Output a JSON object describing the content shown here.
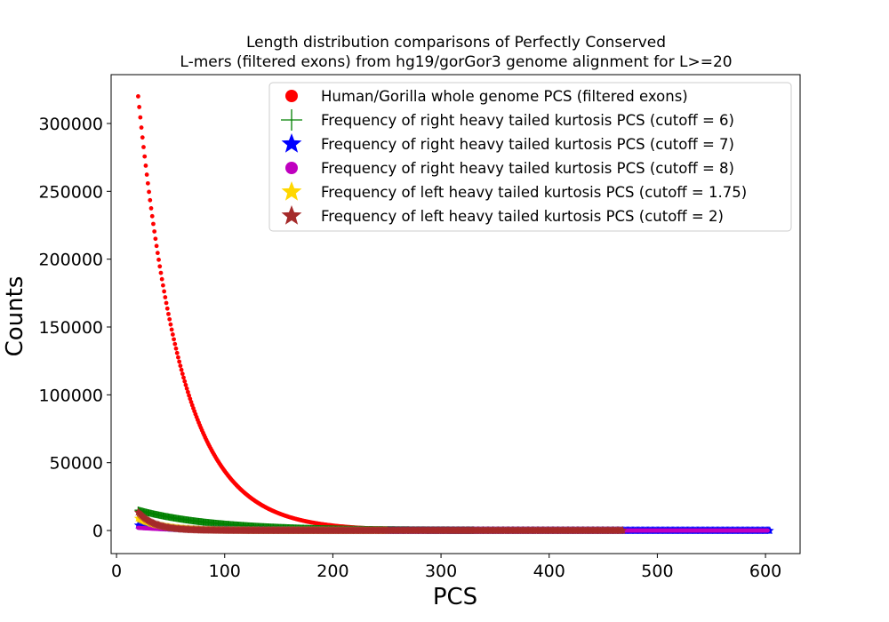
{
  "chart_data": {
    "type": "scatter",
    "title": "Length distribution comparisons of Perfectly Conserved",
    "subtitle": "L-mers (filtered exons) from hg19/gorGor3 genome alignment for L>=20",
    "xlabel": "PCS",
    "ylabel": "Counts",
    "xlim": [
      -5,
      632
    ],
    "ylim": [
      -17000,
      336000
    ],
    "xticks": [
      "0",
      "100",
      "200",
      "300",
      "400",
      "500",
      "600"
    ],
    "yticks": [
      "0",
      "50000",
      "100000",
      "150000",
      "200000",
      "250000",
      "300000"
    ],
    "grid": false,
    "legend_position": "top-right",
    "series": [
      {
        "name": "Human/Gorilla whole genome PCS (filtered exons)",
        "marker": "dot",
        "color": "#ff0000",
        "x_range": [
          20,
          604
        ],
        "model": {
          "kind": "exp",
          "a": 320000,
          "k": 0.02485,
          "x0": 20
        },
        "points": [
          [
            20,
            320000
          ],
          [
            30,
            250000
          ],
          [
            40,
            195000
          ],
          [
            50,
            152000
          ],
          [
            60,
            118000
          ],
          [
            80,
            72000
          ],
          [
            100,
            44000
          ],
          [
            120,
            27000
          ],
          [
            150,
            13500
          ],
          [
            200,
            4000
          ],
          [
            250,
            1300
          ],
          [
            300,
            400
          ],
          [
            400,
            50
          ],
          [
            500,
            0
          ],
          [
            604,
            0
          ]
        ]
      },
      {
        "name": "Frequency of right heavy tailed kurtosis PCS (cutoff = 6)",
        "marker": "plus",
        "color": "#008000",
        "x_range": [
          20,
          330
        ],
        "model": {
          "kind": "exp",
          "a": 15000,
          "k": 0.0145,
          "x0": 20
        },
        "points": [
          [
            20,
            15000
          ],
          [
            50,
            9700
          ],
          [
            100,
            4700
          ],
          [
            150,
            2300
          ],
          [
            200,
            1100
          ],
          [
            250,
            500
          ],
          [
            330,
            150
          ]
        ]
      },
      {
        "name": "Frequency of right heavy tailed kurtosis PCS (cutoff = 7)",
        "marker": "star",
        "color": "#0000ff",
        "x_range": [
          20,
          604
        ],
        "model": {
          "kind": "exp",
          "a": 4000,
          "k": 0.03,
          "x0": 20
        },
        "points": [
          [
            20,
            4000
          ],
          [
            50,
            1600
          ],
          [
            100,
            360
          ],
          [
            200,
            20
          ],
          [
            604,
            0
          ]
        ]
      },
      {
        "name": "Frequency of right heavy tailed kurtosis PCS (cutoff = 8)",
        "marker": "dot",
        "color": "#bf00bf",
        "x_range": [
          20,
          602
        ],
        "model": {
          "kind": "exp",
          "a": 2000,
          "k": 0.03,
          "x0": 20
        },
        "points": [
          [
            20,
            2000
          ],
          [
            50,
            800
          ],
          [
            100,
            180
          ],
          [
            200,
            10
          ],
          [
            602,
            0
          ]
        ]
      },
      {
        "name": "Frequency of left heavy tailed kurtosis PCS (cutoff = 1.75)",
        "marker": "star",
        "color": "#ffd700",
        "x_range": [
          20,
          250
        ],
        "model": {
          "kind": "exp",
          "a": 9000,
          "k": 0.045,
          "x0": 20
        },
        "points": [
          [
            20,
            9000
          ],
          [
            40,
            3700
          ],
          [
            60,
            1500
          ],
          [
            100,
            250
          ],
          [
            250,
            0
          ]
        ]
      },
      {
        "name": "Frequency of left heavy tailed kurtosis PCS (cutoff = 2)",
        "marker": "star",
        "color": "#a52a2a",
        "x_range": [
          20,
          468
        ],
        "model": {
          "kind": "exp",
          "a": 13500,
          "k": 0.065,
          "x0": 20
        },
        "points": [
          [
            20,
            13500
          ],
          [
            30,
            7000
          ],
          [
            40,
            3700
          ],
          [
            60,
            1000
          ],
          [
            100,
            80
          ],
          [
            468,
            0
          ]
        ]
      }
    ]
  }
}
